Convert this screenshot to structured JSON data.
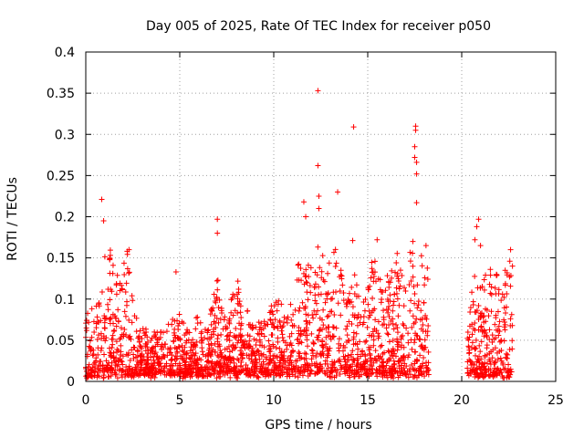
{
  "chart_data": {
    "type": "scatter",
    "title": "Day 005 of 2025, Rate Of TEC Index for receiver p050",
    "xlabel": "GPS time / hours",
    "ylabel": "ROTI / TECUs",
    "xlim": [
      0,
      25
    ],
    "ylim": [
      0,
      0.4
    ],
    "xticks": [
      0,
      5,
      10,
      15,
      20,
      25
    ],
    "xtick_labels": [
      "0",
      "5",
      "10",
      "15",
      "20",
      "25"
    ],
    "yticks": [
      0,
      0.05,
      0.1,
      0.15,
      0.2,
      0.25,
      0.3,
      0.35,
      0.4
    ],
    "ytick_labels": [
      "0",
      "0.05",
      "0.1",
      "0.15",
      "0.2",
      "0.25",
      "0.3",
      "0.35",
      "0.4"
    ],
    "grid": true,
    "marker": "+",
    "color": "#ff0000",
    "data_gap_hours": [
      18.3,
      20.2
    ],
    "notable_points": [
      {
        "x": 0.85,
        "y": 0.221
      },
      {
        "x": 0.95,
        "y": 0.195
      },
      {
        "x": 2.3,
        "y": 0.16
      },
      {
        "x": 4.8,
        "y": 0.133
      },
      {
        "x": 7.0,
        "y": 0.197
      },
      {
        "x": 7.0,
        "y": 0.18
      },
      {
        "x": 11.6,
        "y": 0.218
      },
      {
        "x": 11.7,
        "y": 0.2
      },
      {
        "x": 12.35,
        "y": 0.353
      },
      {
        "x": 12.35,
        "y": 0.262
      },
      {
        "x": 12.4,
        "y": 0.225
      },
      {
        "x": 12.4,
        "y": 0.21
      },
      {
        "x": 13.4,
        "y": 0.23
      },
      {
        "x": 14.25,
        "y": 0.309
      },
      {
        "x": 14.2,
        "y": 0.171
      },
      {
        "x": 15.5,
        "y": 0.172
      },
      {
        "x": 17.55,
        "y": 0.31
      },
      {
        "x": 17.55,
        "y": 0.305
      },
      {
        "x": 17.5,
        "y": 0.285
      },
      {
        "x": 17.5,
        "y": 0.272
      },
      {
        "x": 17.6,
        "y": 0.266
      },
      {
        "x": 17.6,
        "y": 0.252
      },
      {
        "x": 17.6,
        "y": 0.217
      },
      {
        "x": 17.4,
        "y": 0.17
      },
      {
        "x": 18.1,
        "y": 0.165
      },
      {
        "x": 20.9,
        "y": 0.197
      },
      {
        "x": 20.8,
        "y": 0.188
      },
      {
        "x": 20.7,
        "y": 0.172
      },
      {
        "x": 21.0,
        "y": 0.165
      },
      {
        "x": 22.6,
        "y": 0.16
      },
      {
        "x": 22.7,
        "y": 0.14
      }
    ],
    "envelope": [
      {
        "x": 0.0,
        "y": 0.105
      },
      {
        "x": 0.5,
        "y": 0.075
      },
      {
        "x": 0.9,
        "y": 0.14
      },
      {
        "x": 1.3,
        "y": 0.15
      },
      {
        "x": 1.7,
        "y": 0.12
      },
      {
        "x": 2.2,
        "y": 0.155
      },
      {
        "x": 2.8,
        "y": 0.06
      },
      {
        "x": 3.5,
        "y": 0.05
      },
      {
        "x": 4.2,
        "y": 0.05
      },
      {
        "x": 4.8,
        "y": 0.09
      },
      {
        "x": 5.5,
        "y": 0.05
      },
      {
        "x": 6.0,
        "y": 0.08
      },
      {
        "x": 6.5,
        "y": 0.05
      },
      {
        "x": 7.0,
        "y": 0.13
      },
      {
        "x": 7.5,
        "y": 0.06
      },
      {
        "x": 7.9,
        "y": 0.13
      },
      {
        "x": 8.5,
        "y": 0.08
      },
      {
        "x": 9.0,
        "y": 0.06
      },
      {
        "x": 9.5,
        "y": 0.07
      },
      {
        "x": 10.2,
        "y": 0.1
      },
      {
        "x": 10.8,
        "y": 0.07
      },
      {
        "x": 11.3,
        "y": 0.15
      },
      {
        "x": 11.8,
        "y": 0.13
      },
      {
        "x": 12.3,
        "y": 0.17
      },
      {
        "x": 12.8,
        "y": 0.14
      },
      {
        "x": 13.3,
        "y": 0.17
      },
      {
        "x": 13.8,
        "y": 0.11
      },
      {
        "x": 14.3,
        "y": 0.12
      },
      {
        "x": 14.8,
        "y": 0.09
      },
      {
        "x": 15.3,
        "y": 0.15
      },
      {
        "x": 15.8,
        "y": 0.1
      },
      {
        "x": 16.3,
        "y": 0.14
      },
      {
        "x": 16.8,
        "y": 0.15
      },
      {
        "x": 17.3,
        "y": 0.16
      },
      {
        "x": 17.8,
        "y": 0.145
      },
      {
        "x": 18.25,
        "y": 0.15
      },
      {
        "x": 20.3,
        "y": 0.07
      },
      {
        "x": 20.7,
        "y": 0.13
      },
      {
        "x": 21.2,
        "y": 0.12
      },
      {
        "x": 21.7,
        "y": 0.13
      },
      {
        "x": 22.2,
        "y": 0.13
      },
      {
        "x": 22.7,
        "y": 0.14
      }
    ]
  }
}
